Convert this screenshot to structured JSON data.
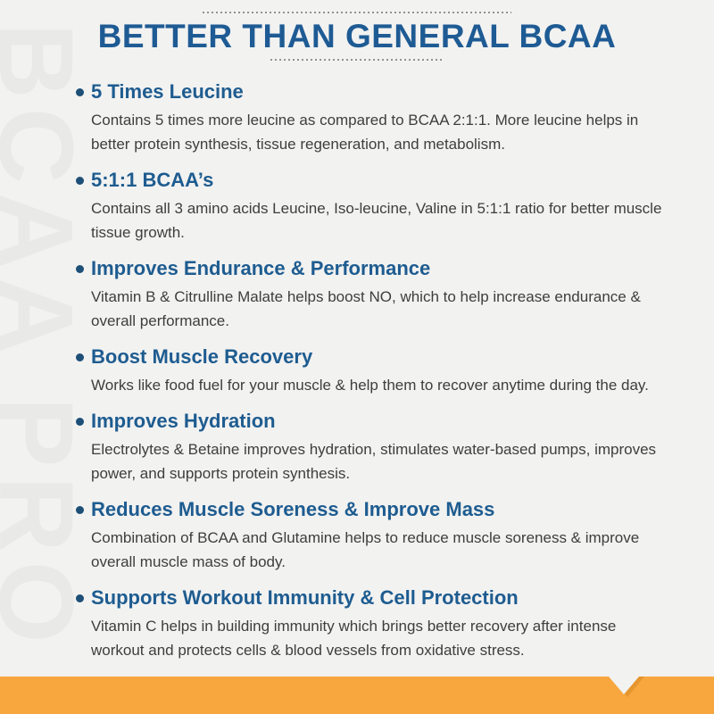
{
  "page": {
    "watermark_text": "BCAA PRO",
    "title": "BETTER THAN GENERAL BCAA",
    "colors": {
      "background": "#f2f2f1",
      "watermark": "#e9e9e8",
      "title_blue": "#1e5b94",
      "heading_blue": "#1e5c90",
      "bullet_dot_navy": "#1d4f77",
      "body_gray": "#3e3e3e",
      "accent_orange": "#f7a73e",
      "accent_orange_dark": "#e6962e"
    },
    "benefits": [
      {
        "heading": "5 Times Leucine",
        "body": "Contains 5 times more leucine as compared to BCAA 2:1:1. More leucine helps in better protein synthesis, tissue regeneration, and metabolism."
      },
      {
        "heading": "5:1:1 BCAA’s",
        "body": "Contains all 3 amino acids Leucine, Iso-leucine, Valine in 5:1:1 ratio for better muscle tissue growth."
      },
      {
        "heading": "Improves Endurance & Performance",
        "body": "Vitamin B & Citrulline Malate helps boost NO, which to help increase endurance & overall performance."
      },
      {
        "heading": "Boost Muscle Recovery",
        "body": "Works like food fuel for your muscle & help them to recover anytime during the day."
      },
      {
        "heading": "Improves Hydration",
        "body": "Electrolytes & Betaine improves hydration, stimulates water-based pumps, improves power, and supports protein synthesis."
      },
      {
        "heading": "Reduces Muscle Soreness & Improve Mass",
        "body": "Combination of BCAA and Glutamine helps to reduce muscle soreness & improve overall muscle mass of body."
      },
      {
        "heading": "Supports Workout Immunity & Cell Protection",
        "body": "Vitamin C helps in building immunity which brings better recovery after intense workout and protects cells & blood vessels from oxidative stress."
      }
    ]
  }
}
